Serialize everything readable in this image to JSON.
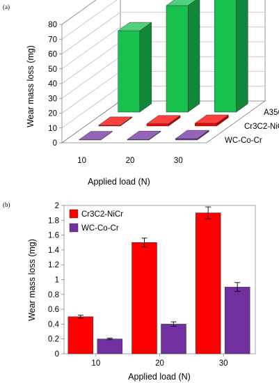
{
  "chart_data": [
    {
      "panel_label": "(a)",
      "type": "bar",
      "projection": "3d",
      "categories": [
        "10",
        "20",
        "30"
      ],
      "depth_categories": [
        "A356",
        "Cr3C2-NiCr",
        "WC-Co-Cr"
      ],
      "series": [
        {
          "name": "A356",
          "values": [
            55,
            72,
            78
          ],
          "color": "#17c24e"
        },
        {
          "name": "Cr3C2-NiCr",
          "values": [
            0.5,
            1.5,
            1.9
          ],
          "color": "#ff0000"
        },
        {
          "name": "WC-Co-Cr",
          "values": [
            0.2,
            0.4,
            0.9
          ],
          "color": "#7030a0"
        }
      ],
      "xlabel": "Applied load (N)",
      "ylabel": "Wear mass loss (mg)",
      "ylim": [
        0,
        80
      ],
      "yticks": [
        "0",
        "10",
        "20",
        "30",
        "40",
        "50",
        "60",
        "70",
        "80"
      ],
      "grid": true
    },
    {
      "panel_label": "(b)",
      "type": "bar",
      "categories": [
        "10",
        "20",
        "30"
      ],
      "series": [
        {
          "name": "Cr3C2-NiCr",
          "values": [
            0.5,
            1.5,
            1.9
          ],
          "errors": [
            0.02,
            0.06,
            0.08
          ],
          "color": "#ff0000"
        },
        {
          "name": "WC-Co-Cr",
          "values": [
            0.2,
            0.4,
            0.9
          ],
          "errors": [
            0.01,
            0.03,
            0.06
          ],
          "color": "#7030a0"
        }
      ],
      "xlabel": "Applied load (N)",
      "ylabel": "Wear mass loss (mg)",
      "ylim": [
        0,
        2
      ],
      "yticks": [
        "0",
        "0.2",
        "0.4",
        "0.6",
        "0.8",
        "1",
        "1.2",
        "1.4",
        "1.6",
        "1.8",
        "2"
      ],
      "legend": "top-left",
      "grid": false
    }
  ]
}
